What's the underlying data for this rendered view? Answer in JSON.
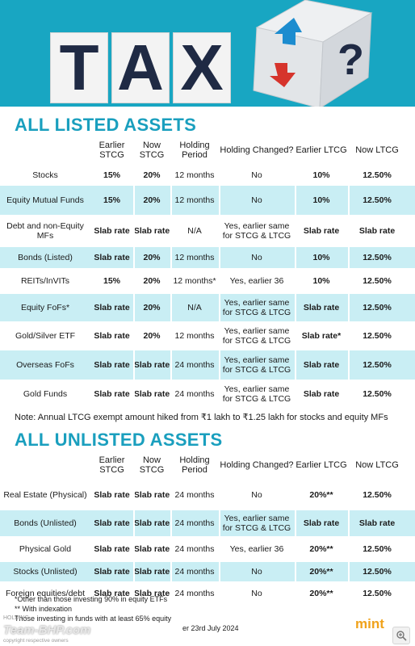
{
  "header": {
    "letters": [
      "T",
      "A",
      "X"
    ],
    "die_symbol": "?"
  },
  "listed": {
    "title": "ALL LISTED ASSETS",
    "columns": [
      "",
      "Earlier STCG",
      "Now STCG",
      "Holding Period",
      "Holding Changed?",
      "Earlier LTCG",
      "Now LTCG"
    ],
    "rows": [
      {
        "asset": "Stocks",
        "earlier_stcg": "15%",
        "now_stcg": "20%",
        "holding": "12 months",
        "changed": "No",
        "earlier_ltcg": "10%",
        "now_ltcg": "12.50%"
      },
      {
        "asset": "Equity Mutual Funds",
        "earlier_stcg": "15%",
        "now_stcg": "20%",
        "holding": "12 months",
        "changed": "No",
        "earlier_ltcg": "10%",
        "now_ltcg": "12.50%"
      },
      {
        "asset": "Debt and non-Equity MFs",
        "earlier_stcg": "Slab rate",
        "now_stcg": "Slab rate",
        "holding": "N/A",
        "changed": "Yes, earlier same for STCG & LTCG",
        "earlier_ltcg": "Slab rate",
        "now_ltcg": "Slab rate"
      },
      {
        "asset": "Bonds (Listed)",
        "earlier_stcg": "Slab rate",
        "now_stcg": "20%",
        "holding": "12 months",
        "changed": "No",
        "earlier_ltcg": "10%",
        "now_ltcg": "12.50%"
      },
      {
        "asset": "REITs/InVITs",
        "earlier_stcg": "15%",
        "now_stcg": "20%",
        "holding": "12 months*",
        "changed": "Yes, earlier 36",
        "earlier_ltcg": "10%",
        "now_ltcg": "12.50%"
      },
      {
        "asset": "Equity FoFs*",
        "earlier_stcg": "Slab rate",
        "now_stcg": "20%",
        "holding": "N/A",
        "changed": "Yes, earlier same for STCG & LTCG",
        "earlier_ltcg": "Slab rate",
        "now_ltcg": "12.50%"
      },
      {
        "asset": "Gold/Silver ETF",
        "earlier_stcg": "Slab rate",
        "now_stcg": "20%",
        "holding": "12 months",
        "changed": "Yes, earlier same for STCG & LTCG",
        "earlier_ltcg": "Slab rate*",
        "now_ltcg": "12.50%"
      },
      {
        "asset": "Overseas FoFs",
        "earlier_stcg": "Slab rate",
        "now_stcg": "Slab rate",
        "holding": "24 months",
        "changed": "Yes, earlier same for STCG & LTCG",
        "earlier_ltcg": "Slab rate",
        "now_ltcg": "12.50%"
      },
      {
        "asset": "Gold Funds",
        "earlier_stcg": "Slab rate",
        "now_stcg": "Slab rate",
        "holding": "24 months",
        "changed": "Yes, earlier same for STCG & LTCG",
        "earlier_ltcg": "Slab rate",
        "now_ltcg": "12.50%"
      }
    ],
    "note": "Note: Annual LTCG exempt amount hiked from ₹1 lakh to ₹1.25 lakh for stocks and equity MFs"
  },
  "unlisted": {
    "title": "ALL UNLISTED ASSETS",
    "columns": [
      "",
      "Earlier STCG",
      "Now STCG",
      "Holding Period",
      "Holding Changed?",
      "Earlier LTCG",
      "Now LTCG"
    ],
    "rows": [
      {
        "asset": "Real Estate (Physical)",
        "earlier_stcg": "Slab rate",
        "now_stcg": "Slab rate",
        "holding": "24 months",
        "changed": "No",
        "earlier_ltcg": "20%**",
        "now_ltcg": "12.50%"
      },
      {
        "asset": "Bonds (Unlisted)",
        "earlier_stcg": "Slab rate",
        "now_stcg": "Slab rate",
        "holding": "24 months",
        "changed": "Yes, earlier same for STCG & LTCG",
        "earlier_ltcg": "Slab rate",
        "now_ltcg": "Slab rate"
      },
      {
        "asset": "Physical Gold",
        "earlier_stcg": "Slab rate",
        "now_stcg": "Slab rate",
        "holding": "24 months",
        "changed": "Yes, earlier 36",
        "earlier_ltcg": "20%**",
        "now_ltcg": "12.50%"
      },
      {
        "asset": "Stocks (Unlisted)",
        "earlier_stcg": "Slab rate",
        "now_stcg": "Slab rate",
        "holding": "24 months",
        "changed": "No",
        "earlier_ltcg": "20%**",
        "now_ltcg": "12.50%"
      },
      {
        "asset": "Foreign equities/debt",
        "earlier_stcg": "Slab rate",
        "now_stcg": "Slab rate",
        "holding": "24 months",
        "changed": "No",
        "earlier_ltcg": "20%**",
        "now_ltcg": "12.50%"
      }
    ]
  },
  "footnotes": [
    "*Other than those investing 90% in equity ETFs",
    "** With indexation",
    "Those investing in funds with at least 65% equity",
    "er 23rd July 2024"
  ],
  "brand": "mint",
  "watermark": {
    "site": "Team-BHP.com",
    "holding_label": "HOLDING",
    "tagline": "copyright respective owners"
  },
  "colors": {
    "header_bg": "#18a6c2",
    "title_blue": "#1a9fbe",
    "row_tint": "#c9eef4",
    "brand_orange": "#f0a21b",
    "letter_navy": "#1f2a44",
    "arrow_blue": "#1c8ccf",
    "arrow_red": "#d6342c"
  },
  "icons": [
    "tax-die-icon",
    "up-arrow-icon",
    "down-arrow-icon",
    "question-mark-icon",
    "zoom-icon"
  ]
}
